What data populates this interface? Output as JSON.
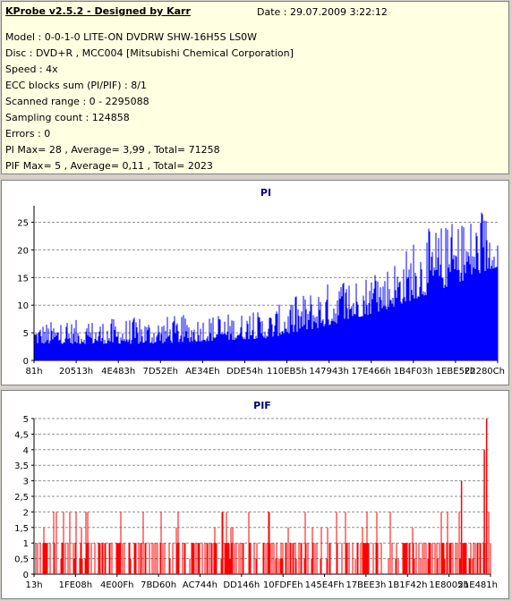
{
  "header": {
    "title": "KProbe v2.5.2 - Designed by Karr",
    "date": "Date : 29.07.2009 3:22:12"
  },
  "info_lines": [
    "Model : 0-0-1-0 LITE-ON DVDRW SHW-16H5S  LS0W",
    "Disc : DVD+R , MCC004 [Mitsubishi Chemical Corporation]",
    "Speed : 4x",
    "ECC blocks sum (PI/PIF) : 8/1",
    "Scanned range : 0 - 2295088",
    "Sampling count : 124858",
    "Errors : 0",
    "PI Max= 28 , Average= 3,99 , Total= 71258",
    "PIF Max= 5 , Average= 0,11 , Total= 2023"
  ],
  "chart_data": [
    {
      "type": "bar",
      "title": "PI",
      "color": "#0000ff",
      "ylim": [
        0,
        28
      ],
      "y_ticks": [
        "0",
        "5",
        "10",
        "15",
        "20",
        "25"
      ],
      "x_tick_labels": [
        "81h",
        "20513h",
        "4E483h",
        "7D52Eh",
        "AE34Eh",
        "DDE54h",
        "110EB5h",
        "147943h",
        "17E466h",
        "1B4F03h",
        "1EBE5Fh",
        "22280Ch"
      ],
      "grid": true,
      "profile": [
        {
          "x": 0.0,
          "base": 3,
          "peak": 7
        },
        {
          "x": 0.25,
          "base": 3,
          "peak": 8
        },
        {
          "x": 0.5,
          "base": 4,
          "peak": 9
        },
        {
          "x": 0.62,
          "base": 6,
          "peak": 14
        },
        {
          "x": 0.75,
          "base": 9,
          "peak": 17
        },
        {
          "x": 0.85,
          "base": 12,
          "peak": 24
        },
        {
          "x": 1.0,
          "base": 17,
          "peak": 28
        }
      ]
    },
    {
      "type": "bar",
      "title": "PIF",
      "color": "#ff0000",
      "ylim": [
        0,
        5
      ],
      "y_ticks": [
        "0",
        "0,5",
        "1",
        "1,5",
        "2",
        "2,5",
        "3",
        "3,5",
        "4",
        "4,5",
        "5"
      ],
      "x_tick_labels": [
        "13h",
        "1FE08h",
        "4E00Fh",
        "7BD60h",
        "AC744h",
        "DD146h",
        "10FDFEh",
        "145E4Fh",
        "17BEE3h",
        "1B1F42h",
        "1E8005h",
        "21E481h"
      ],
      "grid": true,
      "spikes": [
        {
          "x": 0.935,
          "value": 3
        },
        {
          "x": 0.985,
          "value": 4
        },
        {
          "x": 0.99,
          "value": 5
        }
      ]
    }
  ]
}
